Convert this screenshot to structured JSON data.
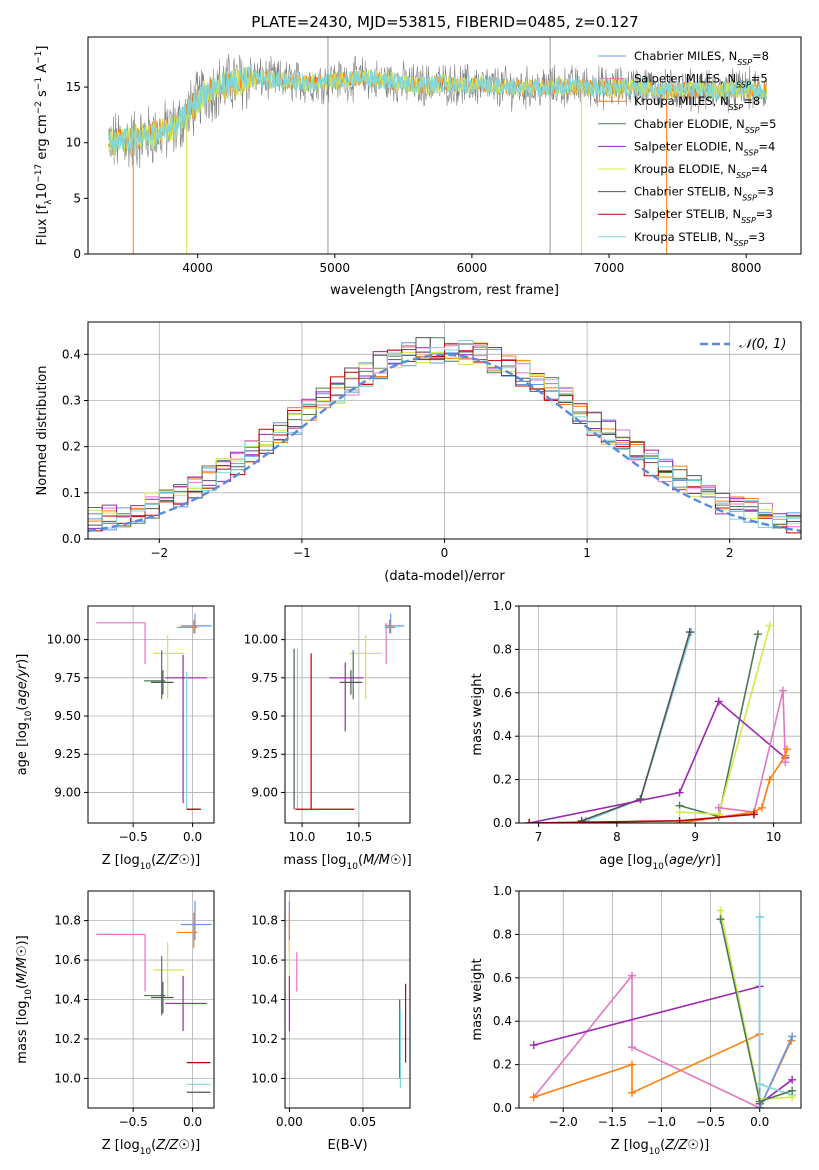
{
  "figure": {
    "title": "PLATE=2430, MJD=53815, FIBERID=0485, z=0.127"
  },
  "colors": {
    "Chabrier MILES": "#6495ed",
    "Salpeter MILES": "#e377c2",
    "Kroupa MILES": "#ff7f0e",
    "Chabrier ELODIE": "#4c7a5a",
    "Salpeter ELODIE": "#9c27b0",
    "Kroupa ELODIE": "#d4e84a",
    "Chabrier STELIB": "#555555",
    "Salpeter STELIB": "#c00000",
    "Kroupa STELIB": "#7fd7dc",
    "gaussian": "#5b8bd8"
  },
  "chart_data": [
    {
      "id": "spectrum",
      "type": "line",
      "title": "PLATE=2430, MJD=53815, FIBERID=0485, z=0.127",
      "xlabel": "wavelength [Angstrom, rest frame]",
      "ylabel": "Flux [f",
      "ylabel_parts": [
        "Flux [f",
        "λ",
        "10",
        "−17",
        " erg cm",
        "−2",
        " s",
        "−1",
        " A",
        "−1",
        "]"
      ],
      "xlim": [
        3200,
        8400
      ],
      "ylim": [
        0,
        19.5
      ],
      "xticks": [
        4000,
        5000,
        6000,
        7000,
        8000
      ],
      "yticks": [
        0,
        5,
        10,
        15
      ],
      "grid": false,
      "legend_position": "top-right",
      "legend": [
        {
          "model": "Chabrier MILES",
          "n": "8"
        },
        {
          "model": "Salpeter MILES",
          "n": "5"
        },
        {
          "model": "Kroupa MILES",
          "n": "8"
        },
        {
          "model": "Chabrier ELODIE",
          "n": "5"
        },
        {
          "model": "Salpeter ELODIE",
          "n": "4"
        },
        {
          "model": "Kroupa ELODIE",
          "n": "4"
        },
        {
          "model": "Chabrier STELIB",
          "n": "3"
        },
        {
          "model": "Salpeter STELIB",
          "n": "3"
        },
        {
          "model": "Kroupa STELIB",
          "n": "3"
        }
      ],
      "continuum": {
        "x": [
          3350,
          3500,
          3700,
          3850,
          3950,
          4050,
          4200,
          4400,
          4600,
          4800,
          5000,
          5200,
          5400,
          5600,
          5800,
          6000,
          6200,
          6400,
          6600,
          6800,
          7000,
          7200,
          7400,
          7600,
          7800,
          8000,
          8150
        ],
        "y": [
          10.0,
          10.2,
          10.8,
          11.5,
          13.0,
          14.5,
          15.2,
          15.8,
          15.6,
          15.4,
          15.6,
          15.8,
          15.5,
          15.2,
          15.3,
          15.2,
          15.0,
          14.9,
          15.0,
          15.1,
          14.9,
          15.1,
          14.7,
          14.8,
          14.6,
          14.8,
          14.6
        ]
      },
      "model_lower_edges": [
        {
          "model": "Kroupa MILES",
          "x": 3530
        },
        {
          "model": "Kroupa ELODIE",
          "x": 3920
        },
        {
          "model": "Kroupa ELODIE",
          "x": 6800
        },
        {
          "model": "Kroupa MILES",
          "x": 7420
        }
      ]
    },
    {
      "id": "residuals",
      "type": "histogram",
      "xlabel": "(data-model)/error",
      "ylabel": "Normed distribution",
      "xlim": [
        -2.5,
        2.5
      ],
      "ylim": [
        0,
        0.47
      ],
      "xticks": [
        -2,
        -1,
        0,
        1,
        2
      ],
      "yticks": [
        0.0,
        0.1,
        0.2,
        0.3,
        0.4
      ],
      "grid": true,
      "legend_position": "top-right",
      "reference": {
        "name": "𝒩(0, 1)",
        "mu": 0,
        "sigma": 1
      },
      "bins": [
        -2.5,
        2.5,
        50
      ]
    },
    {
      "id": "age-vs-Z",
      "type": "scatter",
      "xlabel": "Z [log10(Z/Z☉)]",
      "ylabel": "age  [log10(age/yr)]",
      "xlim": [
        -0.88,
        0.18
      ],
      "ylim": [
        8.8,
        10.22
      ],
      "xticks": [
        -0.5,
        0.0
      ],
      "yticks": [
        9.0,
        9.25,
        9.5,
        9.75,
        10.0
      ],
      "grid": true,
      "errorbars": [
        {
          "model": "Salpeter MILES",
          "x": -0.4,
          "y": 10.11,
          "xerr": [
            0.41,
            0.0
          ],
          "yerr": [
            0.27,
            0.0
          ]
        },
        {
          "model": "Chabrier MILES",
          "x": 0.02,
          "y": 10.09,
          "xerr": [
            0.12,
            0.14
          ],
          "yerr": [
            0.05,
            0.08
          ]
        },
        {
          "model": "Kroupa MILES",
          "x": 0.01,
          "y": 10.08,
          "xerr": [
            0.14,
            0.03
          ],
          "yerr": [
            0.04,
            0.05
          ]
        },
        {
          "model": "Kroupa ELODIE",
          "x": -0.21,
          "y": 9.91,
          "xerr": [
            0.12,
            0.14
          ],
          "yerr": [
            0.3,
            0.12
          ]
        },
        {
          "model": "Chabrier ELODIE",
          "x": -0.26,
          "y": 9.73,
          "xerr": [
            0.15,
            0.03
          ],
          "yerr": [
            0.12,
            0.2
          ]
        },
        {
          "model": "Chabrier STELIB",
          "x": -0.25,
          "y": 9.72,
          "xerr": [
            0.1,
            0.09
          ],
          "yerr": [
            0.08,
            0.08
          ]
        },
        {
          "model": "Salpeter ELODIE",
          "x": -0.08,
          "y": 9.75,
          "xerr": [
            0.15,
            0.2
          ],
          "yerr": [
            0.82,
            0.15
          ]
        },
        {
          "model": "Kroupa STELIB",
          "x": -0.05,
          "y": 8.89,
          "xerr": [
            0.0,
            0.12
          ],
          "yerr": [
            0.0,
            0.9
          ]
        },
        {
          "model": "Chabrier STELIB",
          "x": -0.05,
          "y": 8.89,
          "xerr": [
            0.0,
            0.1
          ],
          "yerr": [
            0.0,
            0.0
          ]
        },
        {
          "model": "Salpeter STELIB",
          "x": -0.05,
          "y": 8.89,
          "xerr": [
            0.0,
            0.12
          ],
          "yerr": [
            0.0,
            0.0
          ]
        }
      ]
    },
    {
      "id": "age-vs-mass",
      "type": "scatter",
      "xlabel": "mass [log10(M/M☉)]",
      "ylabel": "",
      "xlim": [
        9.85,
        10.95
      ],
      "ylim": [
        8.8,
        10.22
      ],
      "xticks": [
        10.0,
        10.5
      ],
      "yticks": [
        9.0,
        9.25,
        9.5,
        9.75,
        10.0
      ],
      "grid": true,
      "errorbars": [
        {
          "model": "Salpeter MILES",
          "x": 10.74,
          "y": 10.11,
          "xerr": [
            0.0,
            0.0
          ],
          "yerr": [
            0.27,
            0.0
          ]
        },
        {
          "model": "Chabrier MILES",
          "x": 10.78,
          "y": 10.09,
          "xerr": [
            0.05,
            0.12
          ],
          "yerr": [
            0.05,
            0.08
          ]
        },
        {
          "model": "Kroupa MILES",
          "x": 10.77,
          "y": 10.08,
          "xerr": [
            0.04,
            0.05
          ],
          "yerr": [
            0.04,
            0.05
          ]
        },
        {
          "model": "Kroupa ELODIE",
          "x": 10.56,
          "y": 9.91,
          "xerr": [
            0.14,
            0.14
          ],
          "yerr": [
            0.3,
            0.12
          ]
        },
        {
          "model": "Chabrier ELODIE",
          "x": 10.45,
          "y": 9.73,
          "xerr": [
            0.0,
            0.0
          ],
          "yerr": [
            0.12,
            0.2
          ]
        },
        {
          "model": "Chabrier STELIB",
          "x": 10.43,
          "y": 9.72,
          "xerr": [
            0.1,
            0.1
          ],
          "yerr": [
            0.08,
            0.08
          ]
        },
        {
          "model": "Salpeter ELODIE",
          "x": 10.38,
          "y": 9.75,
          "xerr": [
            0.14,
            0.16
          ],
          "yerr": [
            0.35,
            0.1
          ]
        },
        {
          "model": "Kroupa STELIB",
          "x": 9.96,
          "y": 8.89,
          "xerr": [
            0.0,
            0.06
          ],
          "yerr": [
            0.0,
            1.05
          ]
        },
        {
          "model": "Chabrier STELIB",
          "x": 9.93,
          "y": 8.89,
          "xerr": [
            0.0,
            0.0
          ],
          "yerr": [
            0.0,
            1.05
          ]
        },
        {
          "model": "Salpeter STELIB",
          "x": 10.08,
          "y": 8.89,
          "xerr": [
            0.14,
            0.38
          ],
          "yerr": [
            0.0,
            1.02
          ]
        }
      ]
    },
    {
      "id": "weight-vs-age",
      "type": "line",
      "xlabel": "age  [log10(age/yr)]",
      "ylabel": "mass weight",
      "xlim": [
        6.75,
        10.35
      ],
      "ylim": [
        0.0,
        1.0
      ],
      "xticks": [
        7,
        8,
        9,
        10
      ],
      "yticks": [
        0.0,
        0.2,
        0.4,
        0.6,
        0.8,
        1.0
      ],
      "grid": true,
      "series": [
        {
          "model": "Chabrier MILES",
          "x": [
            7.6,
            8.3,
            8.95
          ],
          "y": [
            0.01,
            0.11,
            0.88
          ]
        },
        {
          "model": "Kroupa STELIB",
          "x": [
            7.6,
            8.3,
            8.95
          ],
          "y": [
            0.01,
            0.11,
            0.88
          ]
        },
        {
          "model": "Chabrier STELIB",
          "x": [
            7.55,
            8.3,
            8.93
          ],
          "y": [
            0.01,
            0.11,
            0.88
          ]
        },
        {
          "model": "Chabrier ELODIE",
          "x": [
            8.8,
            9.3,
            9.8
          ],
          "y": [
            0.08,
            0.03,
            0.87
          ]
        },
        {
          "model": "Kroupa ELODIE",
          "x": [
            8.8,
            9.3,
            9.95
          ],
          "y": [
            0.05,
            0.04,
            0.91
          ]
        },
        {
          "model": "Salpeter ELODIE",
          "x": [
            6.88,
            8.8,
            9.3,
            10.15
          ],
          "y": [
            0.0,
            0.14,
            0.56,
            0.3
          ]
        },
        {
          "model": "Salpeter MILES",
          "x": [
            9.3,
            9.75,
            10.12,
            10.15
          ],
          "y": [
            0.07,
            0.05,
            0.61,
            0.28
          ]
        },
        {
          "model": "Kroupa MILES",
          "x": [
            8.8,
            9.75,
            9.85,
            9.95,
            10.15,
            10.17
          ],
          "y": [
            0.0,
            0.05,
            0.07,
            0.2,
            0.31,
            0.34
          ]
        },
        {
          "model": "Salpeter STELIB",
          "x": [
            6.88,
            8.8,
            9.75
          ],
          "y": [
            0.0,
            0.01,
            0.04
          ]
        }
      ]
    },
    {
      "id": "mass-vs-Z",
      "type": "scatter",
      "xlabel": "Z [log10(Z/Z☉)]",
      "ylabel": "mass [log10(M/M☉)]",
      "xlim": [
        -0.88,
        0.18
      ],
      "ylim": [
        9.85,
        10.95
      ],
      "xticks": [
        -0.5,
        0.0
      ],
      "yticks": [
        10.0,
        10.2,
        10.4,
        10.6,
        10.8
      ],
      "grid": true,
      "errorbars": [
        {
          "model": "Salpeter MILES",
          "x": -0.4,
          "y": 10.73,
          "xerr": [
            0.41,
            0.0
          ],
          "yerr": [
            0.29,
            0.0
          ]
        },
        {
          "model": "Chabrier MILES",
          "x": 0.02,
          "y": 10.78,
          "xerr": [
            0.12,
            0.14
          ],
          "yerr": [
            0.08,
            0.12
          ]
        },
        {
          "model": "Kroupa MILES",
          "x": 0.01,
          "y": 10.74,
          "xerr": [
            0.14,
            0.03
          ],
          "yerr": [
            0.08,
            0.1
          ]
        },
        {
          "model": "Kroupa ELODIE",
          "x": -0.21,
          "y": 10.55,
          "xerr": [
            0.12,
            0.14
          ],
          "yerr": [
            0.14,
            0.14
          ]
        },
        {
          "model": "Chabrier ELODIE",
          "x": -0.26,
          "y": 10.42,
          "xerr": [
            0.15,
            0.03
          ],
          "yerr": [
            0.1,
            0.2
          ]
        },
        {
          "model": "Chabrier STELIB",
          "x": -0.25,
          "y": 10.41,
          "xerr": [
            0.1,
            0.09
          ],
          "yerr": [
            0.08,
            0.08
          ]
        },
        {
          "model": "Salpeter ELODIE",
          "x": -0.08,
          "y": 10.38,
          "xerr": [
            0.15,
            0.2
          ],
          "yerr": [
            0.14,
            0.14
          ]
        },
        {
          "model": "Salpeter STELIB",
          "x": 0.03,
          "y": 10.08,
          "xerr": [
            0.08,
            0.12
          ],
          "yerr": [
            0.0,
            0.0
          ]
        },
        {
          "model": "Kroupa STELIB",
          "x": 0.03,
          "y": 9.97,
          "xerr": [
            0.08,
            0.12
          ],
          "yerr": [
            0.0,
            0.0
          ]
        },
        {
          "model": "Chabrier STELIB",
          "x": 0.03,
          "y": 9.93,
          "xerr": [
            0.08,
            0.12
          ],
          "yerr": [
            0.0,
            0.0
          ]
        }
      ]
    },
    {
      "id": "mass-vs-ebv",
      "type": "scatter",
      "xlabel": "E(B-V)",
      "ylabel": "",
      "xlim": [
        -0.003,
        0.082
      ],
      "ylim": [
        9.85,
        10.95
      ],
      "xticks": [
        0.0,
        0.05
      ],
      "yticks": [
        10.0,
        10.2,
        10.4,
        10.6,
        10.8
      ],
      "grid": true,
      "errorbars": [
        {
          "model": "Chabrier MILES",
          "x": 0.0,
          "y": 10.78,
          "xerr": [
            0.0,
            0.0
          ],
          "yerr": [
            0.08,
            0.12
          ]
        },
        {
          "model": "Kroupa MILES",
          "x": 0.0,
          "y": 10.74,
          "xerr": [
            0.0,
            0.0
          ],
          "yerr": [
            0.1,
            0.1
          ]
        },
        {
          "model": "Kroupa ELODIE",
          "x": 0.0,
          "y": 10.55,
          "xerr": [
            0.0,
            0.0
          ],
          "yerr": [
            0.15,
            0.15
          ]
        },
        {
          "model": "Salpeter ELODIE",
          "x": 0.0,
          "y": 10.38,
          "xerr": [
            0.0,
            0.0
          ],
          "yerr": [
            0.14,
            0.14
          ]
        },
        {
          "model": "Salpeter MILES",
          "x": 0.005,
          "y": 10.54,
          "xerr": [
            0.0,
            0.0
          ],
          "yerr": [
            0.1,
            0.1
          ]
        },
        {
          "model": "Chabrier STELIB",
          "x": 0.075,
          "y": 10.2,
          "xerr": [
            0.0,
            0.0
          ],
          "yerr": [
            0.2,
            0.2
          ]
        },
        {
          "model": "Kroupa STELIB",
          "x": 0.0755,
          "y": 10.15,
          "xerr": [
            0.0,
            0.0
          ],
          "yerr": [
            0.2,
            0.2
          ]
        },
        {
          "model": "Salpeter STELIB",
          "x": 0.079,
          "y": 10.28,
          "xerr": [
            0.0,
            0.0
          ],
          "yerr": [
            0.2,
            0.2
          ]
        }
      ]
    },
    {
      "id": "weight-vs-Z",
      "type": "line",
      "xlabel": "Z [log10(Z/Z☉)]",
      "ylabel": "mass weight",
      "xlim": [
        -2.45,
        0.42
      ],
      "ylim": [
        0.0,
        1.0
      ],
      "xticks": [
        -2.0,
        -1.5,
        -1.0,
        -0.5,
        0.0
      ],
      "yticks": [
        0.0,
        0.2,
        0.4,
        0.6,
        0.8,
        1.0
      ],
      "grid": true,
      "series": [
        {
          "model": "Salpeter MILES",
          "x": [
            -2.3,
            -1.3,
            -1.3,
            0.0,
            0.0
          ],
          "y": [
            0.05,
            0.61,
            0.28,
            0.0,
            0.02
          ]
        },
        {
          "model": "Salpeter ELODIE",
          "x": [
            -2.3,
            0.0,
            0.0,
            0.33
          ],
          "y": [
            0.29,
            0.56,
            0.02,
            0.13
          ]
        },
        {
          "model": "Kroupa MILES",
          "x": [
            -2.3,
            -1.3,
            -1.3,
            0.0,
            0.0,
            0.32
          ],
          "y": [
            0.05,
            0.2,
            0.07,
            0.34,
            0.0,
            0.31
          ]
        },
        {
          "model": "Chabrier MILES",
          "x": [
            0.0,
            0.0,
            0.33
          ],
          "y": [
            0.88,
            0.0,
            0.33
          ]
        },
        {
          "model": "Kroupa STELIB",
          "x": [
            0.0,
            0.0,
            0.33
          ],
          "y": [
            0.88,
            0.11,
            0.06
          ]
        },
        {
          "model": "Kroupa ELODIE",
          "x": [
            -0.4,
            0.0,
            0.33
          ],
          "y": [
            0.91,
            0.04,
            0.05
          ]
        },
        {
          "model": "Chabrier ELODIE",
          "x": [
            -0.4,
            0.0,
            0.33
          ],
          "y": [
            0.87,
            0.03,
            0.08
          ]
        }
      ]
    }
  ]
}
